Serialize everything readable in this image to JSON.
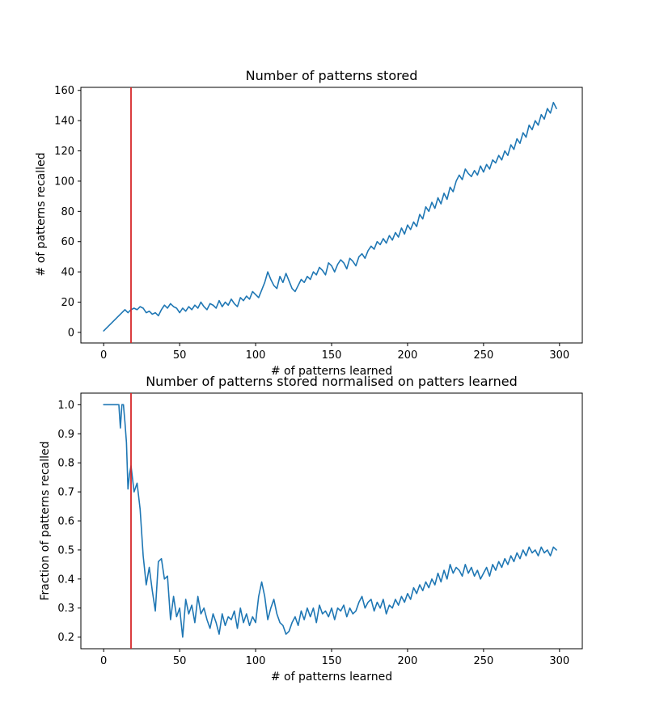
{
  "colors": {
    "series": "#1f77b4",
    "marker_line": "#d62728",
    "axes": "#000000",
    "background": "#ffffff"
  },
  "chart_data": [
    {
      "type": "line",
      "title": "Number of patterns stored",
      "xlabel": "# of patterns learned",
      "ylabel": "# of patterns recalled",
      "xlim": [
        -15,
        315
      ],
      "ylim": [
        -7,
        162
      ],
      "xticks": [
        0,
        50,
        100,
        150,
        200,
        250,
        300
      ],
      "yticks": [
        0,
        20,
        40,
        60,
        80,
        100,
        120,
        140,
        160
      ],
      "grid": false,
      "legend": "none",
      "vline_x": 18,
      "series": [
        {
          "x": [
            0,
            2,
            4,
            6,
            8,
            10,
            12,
            14,
            16,
            18,
            20,
            22,
            24,
            26,
            28,
            30,
            32,
            34,
            36,
            38,
            40,
            42,
            44,
            46,
            48,
            50,
            52,
            54,
            56,
            58,
            60,
            62,
            64,
            66,
            68,
            70,
            72,
            74,
            76,
            78,
            80,
            82,
            84,
            86,
            88,
            90,
            92,
            94,
            96,
            98,
            100,
            102,
            104,
            106,
            108,
            110,
            112,
            114,
            116,
            118,
            120,
            122,
            124,
            126,
            128,
            130,
            132,
            134,
            136,
            138,
            140,
            142,
            144,
            146,
            148,
            150,
            152,
            154,
            156,
            158,
            160,
            162,
            164,
            166,
            168,
            170,
            172,
            174,
            176,
            178,
            180,
            182,
            184,
            186,
            188,
            190,
            192,
            194,
            196,
            198,
            200,
            202,
            204,
            206,
            208,
            210,
            212,
            214,
            216,
            218,
            220,
            222,
            224,
            226,
            228,
            230,
            232,
            234,
            236,
            238,
            240,
            242,
            244,
            246,
            248,
            250,
            252,
            254,
            256,
            258,
            260,
            262,
            264,
            266,
            268,
            270,
            272,
            274,
            276,
            278,
            280,
            282,
            284,
            286,
            288,
            290,
            292,
            294,
            296,
            298
          ],
          "values": [
            1,
            3,
            5,
            7,
            9,
            11,
            13,
            15,
            13,
            15,
            16,
            15,
            17,
            16,
            13,
            14,
            12,
            13,
            11,
            15,
            18,
            16,
            19,
            17,
            16,
            13,
            16,
            14,
            17,
            15,
            18,
            16,
            20,
            17,
            15,
            19,
            18,
            16,
            21,
            17,
            20,
            18,
            22,
            19,
            17,
            23,
            21,
            24,
            22,
            27,
            25,
            23,
            28,
            33,
            40,
            35,
            31,
            29,
            37,
            33,
            39,
            34,
            29,
            27,
            31,
            35,
            33,
            37,
            35,
            40,
            38,
            43,
            41,
            38,
            46,
            44,
            40,
            45,
            48,
            46,
            42,
            49,
            47,
            44,
            50,
            52,
            49,
            54,
            57,
            55,
            60,
            58,
            62,
            59,
            64,
            61,
            66,
            63,
            69,
            65,
            71,
            68,
            73,
            70,
            78,
            75,
            83,
            80,
            86,
            82,
            89,
            85,
            92,
            88,
            96,
            93,
            100,
            104,
            101,
            108,
            105,
            103,
            107,
            104,
            110,
            106,
            111,
            108,
            114,
            112,
            117,
            114,
            120,
            117,
            124,
            121,
            128,
            125,
            132,
            129,
            137,
            134,
            140,
            137,
            144,
            141,
            148,
            145,
            152,
            148
          ]
        }
      ]
    },
    {
      "type": "line",
      "title": "Number of patterns stored normalised on patters learned",
      "xlabel": "# of patterns learned",
      "ylabel": "Fraction of patterns recalled",
      "xlim": [
        -15,
        315
      ],
      "ylim": [
        0.16,
        1.04
      ],
      "xticks": [
        0,
        50,
        100,
        150,
        200,
        250,
        300
      ],
      "yticks": [
        0.2,
        0.3,
        0.4,
        0.5,
        0.6,
        0.7,
        0.8,
        0.9,
        1.0
      ],
      "grid": false,
      "legend": "none",
      "vline_x": 18,
      "series": [
        {
          "x": [
            0,
            2,
            4,
            6,
            8,
            10,
            11,
            12,
            13,
            14,
            15,
            16,
            17,
            18,
            20,
            22,
            24,
            26,
            28,
            30,
            32,
            34,
            36,
            38,
            40,
            42,
            44,
            46,
            48,
            50,
            52,
            54,
            56,
            58,
            60,
            62,
            64,
            66,
            68,
            70,
            72,
            74,
            76,
            78,
            80,
            82,
            84,
            86,
            88,
            90,
            92,
            94,
            96,
            98,
            100,
            102,
            104,
            106,
            108,
            110,
            112,
            114,
            116,
            118,
            120,
            122,
            124,
            126,
            128,
            130,
            132,
            134,
            136,
            138,
            140,
            142,
            144,
            146,
            148,
            150,
            152,
            154,
            156,
            158,
            160,
            162,
            164,
            166,
            168,
            170,
            172,
            174,
            176,
            178,
            180,
            182,
            184,
            186,
            188,
            190,
            192,
            194,
            196,
            198,
            200,
            202,
            204,
            206,
            208,
            210,
            212,
            214,
            216,
            218,
            220,
            222,
            224,
            226,
            228,
            230,
            232,
            234,
            236,
            238,
            240,
            242,
            244,
            246,
            248,
            250,
            252,
            254,
            256,
            258,
            260,
            262,
            264,
            266,
            268,
            270,
            272,
            274,
            276,
            278,
            280,
            282,
            284,
            286,
            288,
            290,
            292,
            294,
            296,
            298
          ],
          "values": [
            1.0,
            1.0,
            1.0,
            1.0,
            1.0,
            1.0,
            0.92,
            1.0,
            1.0,
            0.94,
            0.87,
            0.71,
            0.76,
            0.79,
            0.7,
            0.73,
            0.64,
            0.48,
            0.38,
            0.44,
            0.36,
            0.29,
            0.46,
            0.47,
            0.4,
            0.41,
            0.26,
            0.34,
            0.27,
            0.3,
            0.2,
            0.33,
            0.28,
            0.31,
            0.25,
            0.34,
            0.28,
            0.3,
            0.26,
            0.23,
            0.28,
            0.25,
            0.21,
            0.28,
            0.24,
            0.27,
            0.26,
            0.29,
            0.23,
            0.3,
            0.25,
            0.28,
            0.24,
            0.27,
            0.25,
            0.34,
            0.39,
            0.34,
            0.26,
            0.3,
            0.33,
            0.28,
            0.25,
            0.24,
            0.21,
            0.22,
            0.25,
            0.27,
            0.24,
            0.29,
            0.26,
            0.3,
            0.27,
            0.3,
            0.25,
            0.31,
            0.28,
            0.29,
            0.27,
            0.3,
            0.26,
            0.3,
            0.29,
            0.31,
            0.27,
            0.3,
            0.28,
            0.29,
            0.32,
            0.34,
            0.3,
            0.32,
            0.33,
            0.29,
            0.32,
            0.3,
            0.33,
            0.28,
            0.31,
            0.3,
            0.33,
            0.31,
            0.34,
            0.32,
            0.35,
            0.33,
            0.37,
            0.35,
            0.38,
            0.36,
            0.39,
            0.37,
            0.4,
            0.38,
            0.42,
            0.39,
            0.43,
            0.4,
            0.45,
            0.42,
            0.44,
            0.43,
            0.41,
            0.45,
            0.42,
            0.44,
            0.41,
            0.43,
            0.4,
            0.42,
            0.44,
            0.41,
            0.45,
            0.43,
            0.46,
            0.44,
            0.47,
            0.45,
            0.48,
            0.46,
            0.49,
            0.47,
            0.5,
            0.48,
            0.51,
            0.49,
            0.5,
            0.48,
            0.51,
            0.49,
            0.5,
            0.48,
            0.51,
            0.5
          ]
        }
      ]
    }
  ]
}
